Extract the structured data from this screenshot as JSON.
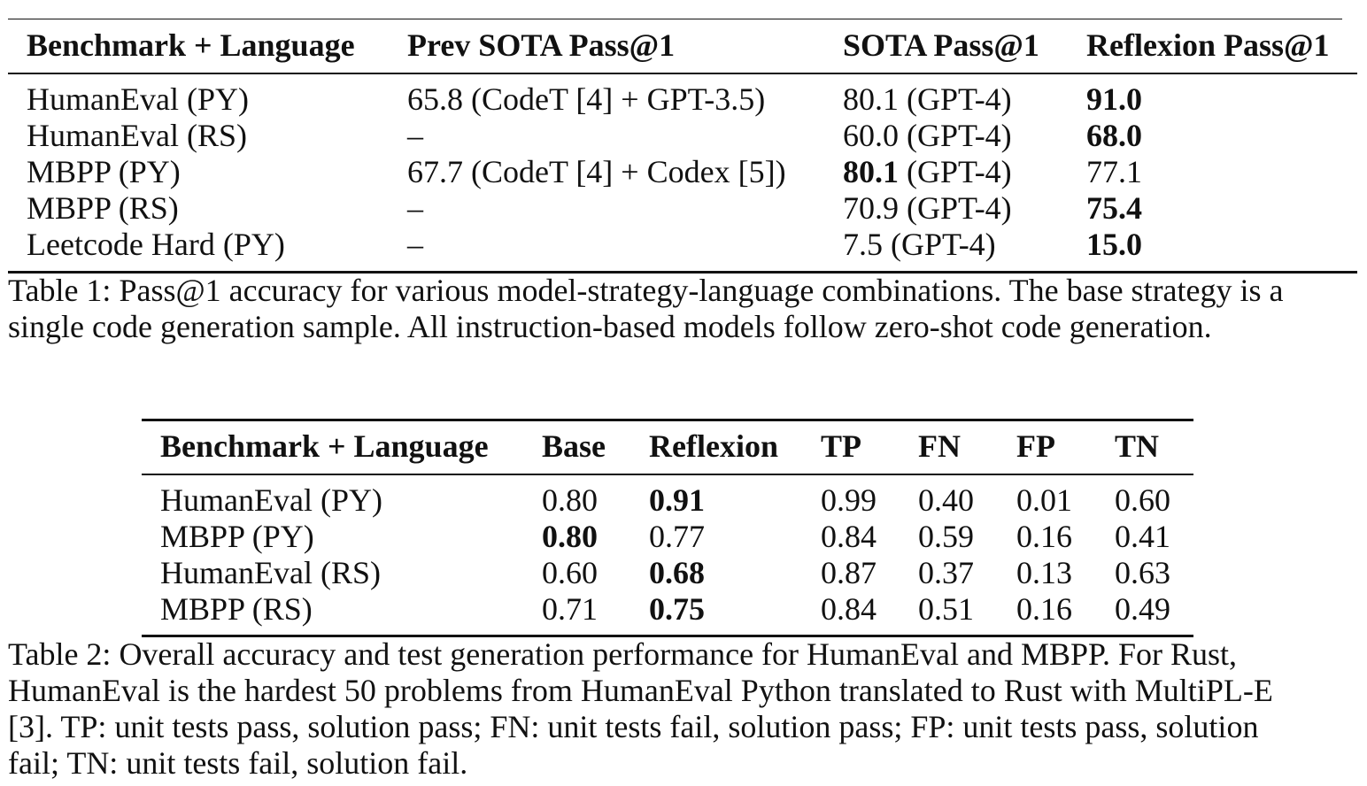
{
  "table1": {
    "headers": [
      "Benchmark + Language",
      "Prev SOTA Pass@1",
      "SOTA Pass@1",
      "Reflexion Pass@1"
    ],
    "rows": [
      {
        "benchmark": "HumanEval (PY)",
        "prev_sota": "65.8 (CodeT [4] + GPT-3.5)",
        "sota_value": "80.1",
        "sota_model": " (GPT-4)",
        "reflexion": "91.0",
        "bold": "reflexion"
      },
      {
        "benchmark": "HumanEval (RS)",
        "prev_sota": "–",
        "sota_value": "60.0",
        "sota_model": " (GPT-4)",
        "reflexion": "68.0",
        "bold": "reflexion"
      },
      {
        "benchmark": "MBPP (PY)",
        "prev_sota": "67.7 (CodeT [4] + Codex [5])",
        "sota_value": "80.1",
        "sota_model": " (GPT-4)",
        "reflexion": "77.1",
        "bold": "sota"
      },
      {
        "benchmark": "MBPP (RS)",
        "prev_sota": "–",
        "sota_value": "70.9",
        "sota_model": " (GPT-4)",
        "reflexion": "75.4",
        "bold": "reflexion"
      },
      {
        "benchmark": "Leetcode Hard (PY)",
        "prev_sota": "–",
        "sota_value": "7.5",
        "sota_model": " (GPT-4)",
        "reflexion": "15.0",
        "bold": "reflexion"
      }
    ],
    "caption_lines": [
      "Table 1: Pass@1 accuracy for various model-strategy-language combinations. The base strategy is a",
      "single code generation sample. All instruction-based models follow zero-shot code generation."
    ]
  },
  "table2": {
    "headers": [
      "Benchmark + Language",
      "Base",
      "Reflexion",
      "TP",
      "FN",
      "FP",
      "TN"
    ],
    "rows": [
      {
        "cells": [
          "HumanEval (PY)",
          "0.80",
          "0.91",
          "0.99",
          "0.40",
          "0.01",
          "0.60"
        ],
        "bold_index": 2
      },
      {
        "cells": [
          "MBPP (PY)",
          "0.80",
          "0.77",
          "0.84",
          "0.59",
          "0.16",
          "0.41"
        ],
        "bold_index": 1
      },
      {
        "cells": [
          "HumanEval (RS)",
          "0.60",
          "0.68",
          "0.87",
          "0.37",
          "0.13",
          "0.63"
        ],
        "bold_index": 2
      },
      {
        "cells": [
          "MBPP (RS)",
          "0.71",
          "0.75",
          "0.84",
          "0.51",
          "0.16",
          "0.49"
        ],
        "bold_index": 2
      }
    ],
    "caption_lines": [
      "Table 2: Overall accuracy and test generation performance for HumanEval and MBPP. For Rust,",
      "HumanEval is the hardest 50 problems from HumanEval Python translated to Rust with MultiPL-E",
      "[3]. TP: unit tests pass, solution pass; FN: unit tests fail, solution pass; FP: unit tests pass, solution",
      "fail; TN: unit tests fail, solution fail."
    ]
  }
}
